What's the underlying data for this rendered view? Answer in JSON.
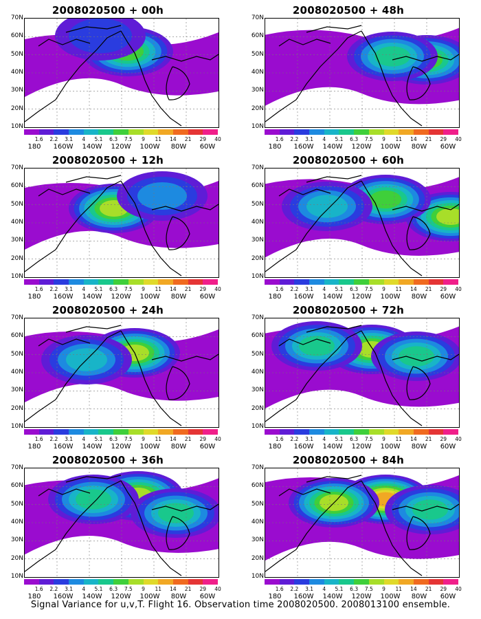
{
  "chart_data": [
    {
      "type": "heatmap",
      "title": "2008020500 + 00h",
      "intensity": 0.4,
      "centers": [
        [
          150,
          48,
          0.55
        ],
        [
          110,
          25,
          0.2
        ]
      ]
    },
    {
      "type": "heatmap",
      "title": "2008020500 + 48h",
      "intensity": 0.72,
      "centers": [
        [
          235,
          60,
          0.6
        ],
        [
          185,
          55,
          0.5
        ]
      ]
    },
    {
      "type": "heatmap",
      "title": "2008020500 + 12h",
      "intensity": 0.5,
      "centers": [
        [
          130,
          58,
          0.65
        ],
        [
          200,
          40,
          0.3
        ]
      ]
    },
    {
      "type": "heatmap",
      "title": "2008020500 + 60h",
      "intensity": 0.78,
      "centers": [
        [
          270,
          70,
          0.7
        ],
        [
          175,
          45,
          0.55
        ],
        [
          90,
          55,
          0.4
        ]
      ]
    },
    {
      "type": "heatmap",
      "title": "2008020500 + 24h",
      "intensity": 0.6,
      "centers": [
        [
          160,
          50,
          0.7
        ],
        [
          90,
          60,
          0.4
        ]
      ]
    },
    {
      "type": "heatmap",
      "title": "2008020500 + 72h",
      "intensity": 0.82,
      "centers": [
        [
          155,
          45,
          0.7
        ],
        [
          220,
          55,
          0.5
        ],
        [
          75,
          40,
          0.5
        ]
      ]
    },
    {
      "type": "heatmap",
      "title": "2008020500 + 36h",
      "intensity": 0.68,
      "centers": [
        [
          165,
          40,
          0.7
        ],
        [
          100,
          45,
          0.5
        ],
        [
          220,
          65,
          0.45
        ]
      ]
    },
    {
      "type": "heatmap",
      "title": "2008020500 + 84h",
      "intensity": 0.9,
      "centers": [
        [
          175,
          45,
          0.85
        ],
        [
          100,
          50,
          0.7
        ],
        [
          240,
          60,
          0.5
        ]
      ]
    }
  ],
  "axes": {
    "y_ticks": [
      "70N",
      "60N",
      "50N",
      "40N",
      "30N",
      "20N",
      "10N"
    ],
    "x_ticks": [
      "180",
      "160W",
      "140W",
      "120W",
      "100W",
      "80W",
      "60W"
    ]
  },
  "colorbar": {
    "labels": [
      "1.6",
      "2.2",
      "3.1",
      "4",
      "5.1",
      "6.3",
      "7.5",
      "9",
      "11",
      "14",
      "21",
      "29",
      "40"
    ],
    "colors": [
      "#ffffff",
      "#9a0ccf",
      "#5f1cd6",
      "#2a3cdf",
      "#1d8ae0",
      "#18b4c8",
      "#19c88c",
      "#3fcf3a",
      "#a8de29",
      "#e0d92a",
      "#f1a824",
      "#f06a1f",
      "#e53535",
      "#f01f8a"
    ]
  },
  "footer": "Signal Variance for u,v,T. Flight 16. Observation time 2008020500. 2008013100 ensemble."
}
